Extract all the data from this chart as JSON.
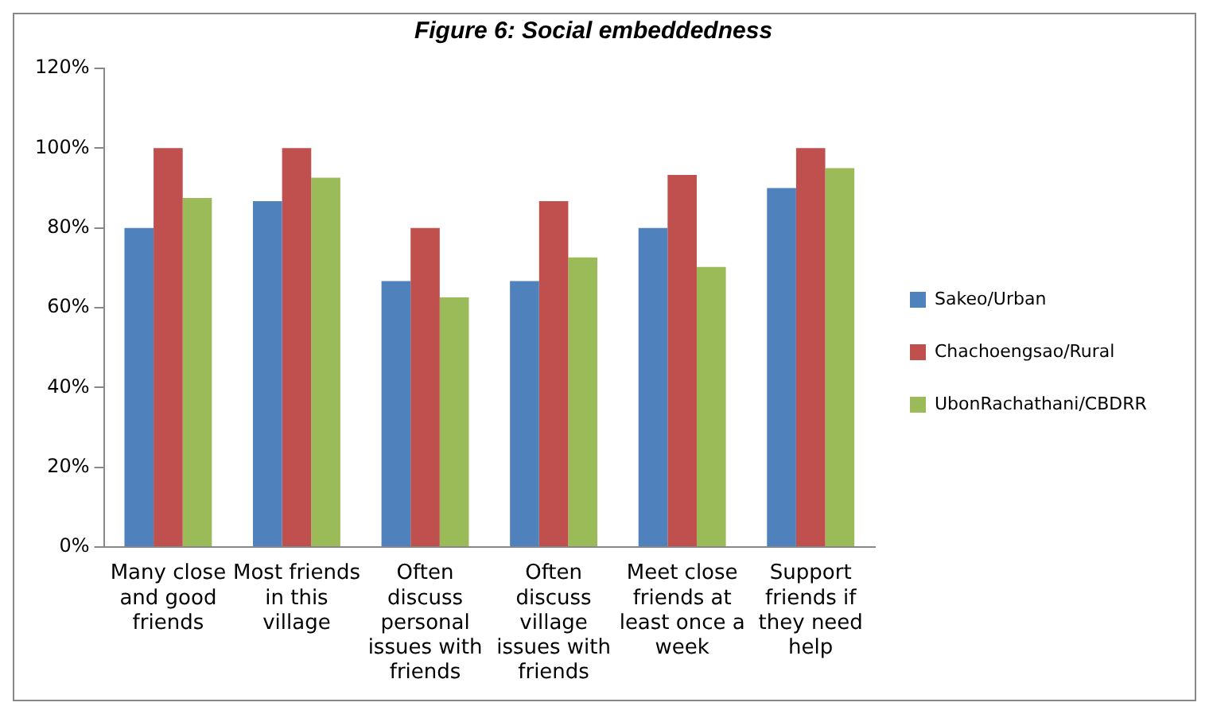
{
  "chart_data": {
    "type": "bar",
    "title": "Figure 6: Social embeddedness",
    "categories": [
      "Many close and good friends",
      "Most friends in this village",
      "Often discuss personal issues with friends",
      "Often discuss village issues with friends",
      "Meet close friends at least once a week",
      "Support friends if they need help"
    ],
    "series": [
      {
        "name": "Sakeo/Urban",
        "color": "#4f81bd",
        "values": [
          80,
          86.7,
          66.7,
          66.7,
          80,
          90
        ]
      },
      {
        "name": "Chachoengsao/Rural",
        "color": "#c0504d",
        "values": [
          100,
          100,
          80,
          86.7,
          93.3,
          100
        ]
      },
      {
        "name": "UbonRachathani/CBDRR",
        "color": "#9bbb59",
        "values": [
          87.5,
          92.6,
          62.6,
          72.6,
          70.2,
          95
        ]
      }
    ],
    "ylim": [
      0,
      120
    ],
    "yticks": [
      {
        "value": 0,
        "label": "0%"
      },
      {
        "value": 20,
        "label": "20%"
      },
      {
        "value": 40,
        "label": "40%"
      },
      {
        "value": 60,
        "label": "60%"
      },
      {
        "value": 80,
        "label": "80%"
      },
      {
        "value": 100,
        "label": "100%"
      },
      {
        "value": 120,
        "label": "120%"
      }
    ],
    "grid": false,
    "legend": "right"
  }
}
